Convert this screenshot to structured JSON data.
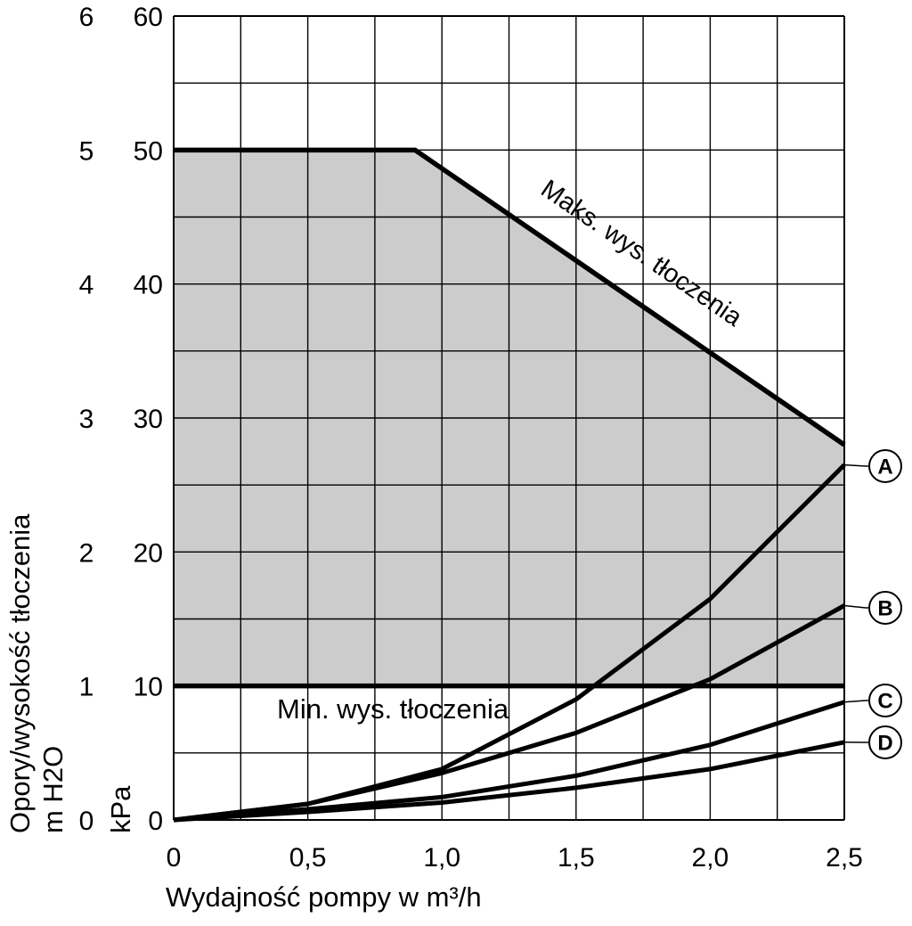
{
  "chart_data": {
    "type": "line",
    "xlabel": "Wydajność pompy w m³/h",
    "ylabel_lines": [
      "Opory/wysokość tłoczenia",
      "m H2O",
      "kPa"
    ],
    "xlim": [
      0,
      2.5
    ],
    "ylim_kpa": [
      0,
      60
    ],
    "ylim_mh2o": [
      0,
      6
    ],
    "grid": true,
    "x_ticks": [
      "0",
      "0,5",
      "1,0",
      "1,5",
      "2,0",
      "2,5"
    ],
    "y_ticks_kpa": [
      "0",
      "10",
      "20",
      "30",
      "40",
      "50",
      "60"
    ],
    "y_ticks_mh2o": [
      "0",
      "1",
      "2",
      "3",
      "4",
      "5",
      "6"
    ],
    "max_head": {
      "label": "Maks. wys. tłoczenia",
      "x": [
        0,
        0.9,
        2.5
      ],
      "y": [
        50,
        50,
        28
      ]
    },
    "min_head": {
      "label": "Min. wys. tłoczenia",
      "y": 10
    },
    "series": [
      {
        "name": "A",
        "x": [
          0,
          0.5,
          1.0,
          1.5,
          2.0,
          2.5
        ],
        "values": [
          0,
          1.2,
          3.8,
          9.0,
          16.5,
          26.5
        ]
      },
      {
        "name": "B",
        "x": [
          0,
          0.5,
          1.0,
          1.5,
          2.0,
          2.5
        ],
        "values": [
          0,
          1.2,
          3.5,
          6.5,
          10.5,
          16.0
        ]
      },
      {
        "name": "C",
        "x": [
          0,
          0.5,
          1.0,
          1.5,
          2.0,
          2.5
        ],
        "values": [
          0,
          0.8,
          1.7,
          3.3,
          5.6,
          8.8
        ]
      },
      {
        "name": "D",
        "x": [
          0,
          0.5,
          1.0,
          1.5,
          2.0,
          2.5
        ],
        "values": [
          0,
          0.6,
          1.3,
          2.4,
          3.8,
          5.8
        ]
      }
    ]
  }
}
